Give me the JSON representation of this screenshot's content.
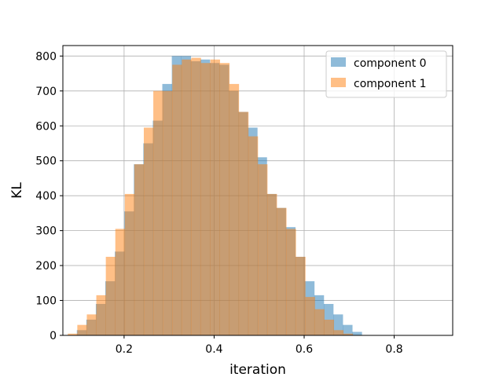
{
  "chart_data": {
    "type": "bar",
    "title": "",
    "xlabel": "iteration",
    "ylabel": "KL",
    "xlim": [
      0.064,
      0.93
    ],
    "ylim": [
      0,
      830
    ],
    "x_ticks": [
      "0.2",
      "0.4",
      "0.6",
      "0.8"
    ],
    "y_ticks": [
      "0",
      "100",
      "200",
      "300",
      "400",
      "500",
      "600",
      "700",
      "800"
    ],
    "grid": true,
    "legend": "top-right",
    "bin_width": 0.0211,
    "series": [
      {
        "name": "component 0",
        "color": "#1f77b4",
        "alpha": 0.5,
        "x_start": 0.095,
        "values": [
          15,
          45,
          90,
          155,
          240,
          355,
          490,
          550,
          615,
          720,
          800,
          800,
          785,
          790,
          780,
          775,
          700,
          640,
          595,
          510,
          405,
          365,
          310,
          225,
          155,
          115,
          90,
          60,
          30,
          10
        ]
      },
      {
        "name": "component 1",
        "color": "#ff7f0e",
        "alpha": 0.5,
        "x_start": 0.075,
        "values": [
          5,
          30,
          60,
          115,
          225,
          305,
          405,
          490,
          595,
          700,
          700,
          775,
          790,
          795,
          780,
          790,
          780,
          720,
          640,
          570,
          490,
          405,
          365,
          305,
          225,
          110,
          75,
          45,
          15,
          5
        ]
      }
    ]
  }
}
